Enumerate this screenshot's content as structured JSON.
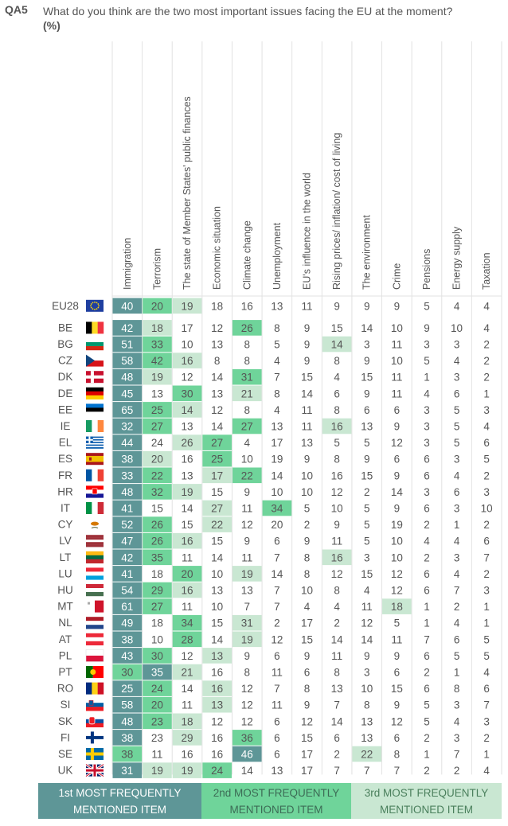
{
  "question": {
    "code": "QA5",
    "text": "What do you think are the two most important issues facing the EU at the moment?",
    "unit": "(%)"
  },
  "legend": [
    {
      "line1": "1st MOST FREQUENTLY",
      "line2": "MENTIONED ITEM",
      "color": "#5e9697"
    },
    {
      "line1": "2nd MOST FREQUENTLY",
      "line2": "MENTIONED ITEM",
      "color": "#6fd49a"
    },
    {
      "line1": "3rd MOST FREQUENTLY",
      "line2": "MENTIONED ITEM",
      "color": "#c9e7d2"
    }
  ],
  "chart_data": {
    "type": "table",
    "columns": [
      "Immigration",
      "Terrorism",
      "The state of Member States' public finances",
      "Economic situation",
      "Climate change",
      "Unemployment",
      "EU's influence in the world",
      "Rising prices/ inflation/ cost of living",
      "The environment",
      "Crime",
      "Pensions",
      "Energy supply",
      "Taxation"
    ],
    "rows": [
      {
        "country": "EU28",
        "flag": "eu",
        "values": [
          40,
          20,
          19,
          18,
          16,
          13,
          11,
          9,
          9,
          9,
          5,
          4,
          4
        ],
        "rank": [
          1,
          2,
          3,
          0,
          0,
          0,
          0,
          0,
          0,
          0,
          0,
          0,
          0
        ]
      },
      {
        "country": "BE",
        "flag": "be",
        "values": [
          42,
          18,
          17,
          12,
          26,
          8,
          9,
          15,
          14,
          10,
          9,
          10,
          4
        ],
        "rank": [
          1,
          3,
          0,
          0,
          2,
          0,
          0,
          0,
          0,
          0,
          0,
          0,
          0
        ]
      },
      {
        "country": "BG",
        "flag": "bg",
        "values": [
          51,
          33,
          10,
          13,
          8,
          5,
          9,
          14,
          3,
          11,
          3,
          3,
          2
        ],
        "rank": [
          1,
          2,
          0,
          0,
          0,
          0,
          0,
          3,
          0,
          0,
          0,
          0,
          0
        ]
      },
      {
        "country": "CZ",
        "flag": "cz",
        "values": [
          58,
          42,
          16,
          8,
          8,
          4,
          9,
          8,
          9,
          10,
          5,
          4,
          2
        ],
        "rank": [
          1,
          2,
          3,
          0,
          0,
          0,
          0,
          0,
          0,
          0,
          0,
          0,
          0
        ]
      },
      {
        "country": "DK",
        "flag": "dk",
        "values": [
          48,
          19,
          12,
          14,
          31,
          7,
          15,
          4,
          15,
          11,
          1,
          3,
          2
        ],
        "rank": [
          1,
          3,
          0,
          0,
          2,
          0,
          0,
          0,
          0,
          0,
          0,
          0,
          0
        ]
      },
      {
        "country": "DE",
        "flag": "de",
        "values": [
          45,
          13,
          30,
          13,
          21,
          8,
          14,
          6,
          9,
          11,
          4,
          6,
          1
        ],
        "rank": [
          1,
          0,
          2,
          0,
          3,
          0,
          0,
          0,
          0,
          0,
          0,
          0,
          0
        ]
      },
      {
        "country": "EE",
        "flag": "ee",
        "values": [
          65,
          25,
          14,
          12,
          8,
          4,
          11,
          8,
          6,
          6,
          3,
          5,
          3
        ],
        "rank": [
          1,
          2,
          3,
          0,
          0,
          0,
          0,
          0,
          0,
          0,
          0,
          0,
          0
        ]
      },
      {
        "country": "IE",
        "flag": "ie",
        "values": [
          32,
          27,
          13,
          14,
          27,
          13,
          11,
          16,
          13,
          9,
          3,
          5,
          4
        ],
        "rank": [
          1,
          2,
          0,
          0,
          2,
          0,
          0,
          3,
          0,
          0,
          0,
          0,
          0
        ]
      },
      {
        "country": "EL",
        "flag": "el",
        "values": [
          44,
          24,
          26,
          27,
          4,
          17,
          13,
          5,
          5,
          12,
          3,
          5,
          6
        ],
        "rank": [
          1,
          0,
          3,
          2,
          0,
          0,
          0,
          0,
          0,
          0,
          0,
          0,
          0
        ]
      },
      {
        "country": "ES",
        "flag": "es",
        "values": [
          38,
          20,
          16,
          25,
          10,
          19,
          9,
          8,
          9,
          6,
          6,
          3,
          5
        ],
        "rank": [
          1,
          3,
          0,
          2,
          0,
          0,
          0,
          0,
          0,
          0,
          0,
          0,
          0
        ]
      },
      {
        "country": "FR",
        "flag": "fr",
        "values": [
          33,
          22,
          13,
          17,
          22,
          14,
          10,
          16,
          15,
          9,
          6,
          4,
          2
        ],
        "rank": [
          1,
          2,
          0,
          3,
          2,
          0,
          0,
          0,
          0,
          0,
          0,
          0,
          0
        ]
      },
      {
        "country": "HR",
        "flag": "hr",
        "values": [
          48,
          32,
          19,
          15,
          9,
          10,
          10,
          12,
          2,
          14,
          3,
          6,
          3
        ],
        "rank": [
          1,
          2,
          3,
          0,
          0,
          0,
          0,
          0,
          0,
          0,
          0,
          0,
          0
        ]
      },
      {
        "country": "IT",
        "flag": "it",
        "values": [
          41,
          15,
          14,
          27,
          11,
          34,
          5,
          10,
          5,
          9,
          6,
          3,
          10
        ],
        "rank": [
          1,
          0,
          0,
          3,
          0,
          2,
          0,
          0,
          0,
          0,
          0,
          0,
          0
        ]
      },
      {
        "country": "CY",
        "flag": "cy",
        "values": [
          52,
          26,
          15,
          22,
          12,
          20,
          2,
          9,
          5,
          19,
          2,
          1,
          2
        ],
        "rank": [
          1,
          2,
          0,
          3,
          0,
          0,
          0,
          0,
          0,
          0,
          0,
          0,
          0
        ]
      },
      {
        "country": "LV",
        "flag": "lv",
        "values": [
          47,
          26,
          16,
          15,
          9,
          6,
          9,
          11,
          5,
          10,
          4,
          4,
          6
        ],
        "rank": [
          1,
          2,
          3,
          0,
          0,
          0,
          0,
          0,
          0,
          0,
          0,
          0,
          0
        ]
      },
      {
        "country": "LT",
        "flag": "lt",
        "values": [
          42,
          35,
          11,
          14,
          11,
          7,
          8,
          16,
          3,
          10,
          2,
          3,
          7
        ],
        "rank": [
          1,
          2,
          0,
          0,
          0,
          0,
          0,
          3,
          0,
          0,
          0,
          0,
          0
        ]
      },
      {
        "country": "LU",
        "flag": "lu",
        "values": [
          41,
          18,
          20,
          10,
          19,
          14,
          8,
          12,
          15,
          12,
          6,
          4,
          2
        ],
        "rank": [
          1,
          0,
          2,
          0,
          3,
          0,
          0,
          0,
          0,
          0,
          0,
          0,
          0
        ]
      },
      {
        "country": "HU",
        "flag": "hu",
        "values": [
          54,
          29,
          16,
          13,
          13,
          7,
          10,
          8,
          4,
          12,
          6,
          7,
          3
        ],
        "rank": [
          1,
          2,
          3,
          0,
          0,
          0,
          0,
          0,
          0,
          0,
          0,
          0,
          0
        ]
      },
      {
        "country": "MT",
        "flag": "mt",
        "values": [
          61,
          27,
          11,
          10,
          7,
          7,
          4,
          4,
          11,
          18,
          1,
          2,
          1
        ],
        "rank": [
          1,
          2,
          0,
          0,
          0,
          0,
          0,
          0,
          0,
          3,
          0,
          0,
          0
        ]
      },
      {
        "country": "NL",
        "flag": "nl",
        "values": [
          49,
          18,
          34,
          15,
          31,
          2,
          17,
          2,
          12,
          5,
          1,
          4,
          1
        ],
        "rank": [
          1,
          0,
          2,
          0,
          3,
          0,
          0,
          0,
          0,
          0,
          0,
          0,
          0
        ]
      },
      {
        "country": "AT",
        "flag": "at",
        "values": [
          38,
          10,
          28,
          14,
          19,
          12,
          15,
          14,
          14,
          11,
          7,
          6,
          5
        ],
        "rank": [
          1,
          0,
          2,
          0,
          3,
          0,
          0,
          0,
          0,
          0,
          0,
          0,
          0
        ]
      },
      {
        "country": "PL",
        "flag": "pl",
        "values": [
          43,
          30,
          12,
          13,
          9,
          6,
          9,
          11,
          9,
          9,
          6,
          5,
          5
        ],
        "rank": [
          1,
          2,
          0,
          3,
          0,
          0,
          0,
          0,
          0,
          0,
          0,
          0,
          0
        ]
      },
      {
        "country": "PT",
        "flag": "pt",
        "values": [
          30,
          35,
          21,
          16,
          8,
          11,
          6,
          8,
          3,
          6,
          2,
          1,
          4
        ],
        "rank": [
          2,
          1,
          3,
          0,
          0,
          0,
          0,
          0,
          0,
          0,
          0,
          0,
          0
        ]
      },
      {
        "country": "RO",
        "flag": "ro",
        "values": [
          25,
          24,
          14,
          16,
          12,
          7,
          8,
          13,
          10,
          15,
          6,
          8,
          6
        ],
        "rank": [
          1,
          2,
          0,
          3,
          0,
          0,
          0,
          0,
          0,
          0,
          0,
          0,
          0
        ]
      },
      {
        "country": "SI",
        "flag": "si",
        "values": [
          58,
          20,
          11,
          13,
          12,
          11,
          9,
          7,
          8,
          9,
          5,
          3,
          7
        ],
        "rank": [
          1,
          2,
          0,
          3,
          0,
          0,
          0,
          0,
          0,
          0,
          0,
          0,
          0
        ]
      },
      {
        "country": "SK",
        "flag": "sk",
        "values": [
          48,
          23,
          18,
          12,
          12,
          6,
          12,
          14,
          13,
          12,
          5,
          4,
          3
        ],
        "rank": [
          1,
          2,
          3,
          0,
          0,
          0,
          0,
          0,
          0,
          0,
          0,
          0,
          0
        ]
      },
      {
        "country": "FI",
        "flag": "fi",
        "values": [
          38,
          23,
          29,
          16,
          36,
          6,
          15,
          6,
          13,
          6,
          2,
          3,
          2
        ],
        "rank": [
          1,
          0,
          3,
          0,
          2,
          0,
          0,
          0,
          0,
          0,
          0,
          0,
          0
        ]
      },
      {
        "country": "SE",
        "flag": "se",
        "values": [
          38,
          11,
          16,
          16,
          46,
          6,
          17,
          2,
          22,
          8,
          1,
          7,
          1
        ],
        "rank": [
          2,
          0,
          0,
          0,
          1,
          0,
          0,
          0,
          3,
          0,
          0,
          0,
          0
        ]
      },
      {
        "country": "UK",
        "flag": "uk",
        "values": [
          31,
          19,
          19,
          24,
          14,
          13,
          17,
          7,
          7,
          7,
          2,
          2,
          4
        ],
        "rank": [
          1,
          3,
          3,
          2,
          0,
          0,
          0,
          0,
          0,
          0,
          0,
          0,
          0
        ]
      }
    ]
  }
}
